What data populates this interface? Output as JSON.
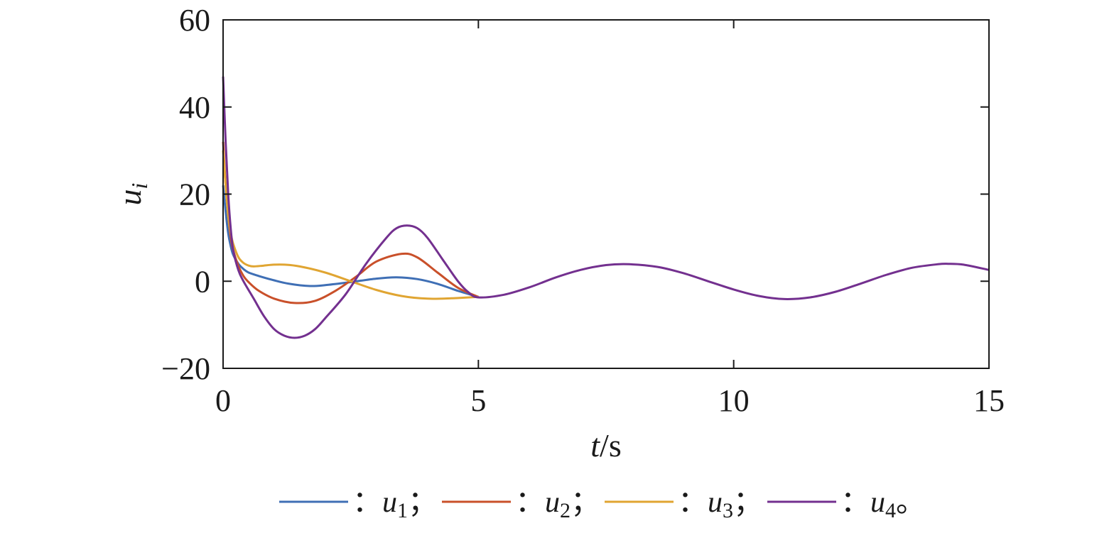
{
  "chart_data": {
    "type": "line",
    "title": "",
    "xlabel": {
      "var": "t",
      "unit": "/s"
    },
    "ylabel": {
      "var": "u",
      "sub": "i"
    },
    "xlim": [
      0,
      15
    ],
    "ylim": [
      -20,
      60
    ],
    "xticks": [
      0,
      5,
      10,
      15
    ],
    "yticks": [
      -20,
      0,
      20,
      40,
      60
    ],
    "ytick_labels": [
      "−20",
      "0",
      "20",
      "40",
      "60"
    ],
    "grid": false,
    "legend_position": "bottom",
    "series": [
      {
        "name": "u1",
        "legend_label": {
          "prefix": "：",
          "var": "u",
          "sub": "1",
          "suffix": "；"
        },
        "color": "#3f6fb5",
        "x": [
          0,
          0.05,
          0.1,
          0.15,
          0.2,
          0.3,
          0.4,
          0.5,
          0.7,
          1.0,
          1.3,
          1.7,
          2.0,
          2.5,
          3.0,
          3.4,
          3.8,
          4.2,
          4.6,
          5.0
        ],
        "y": [
          22,
          16,
          11,
          8,
          6,
          4,
          2.8,
          2,
          1.2,
          0.2,
          -0.6,
          -1.1,
          -0.9,
          -0.2,
          0.6,
          0.9,
          0.5,
          -0.6,
          -2.2,
          -3.6
        ]
      },
      {
        "name": "u2",
        "legend_label": {
          "prefix": "：",
          "var": "u",
          "sub": "2",
          "suffix": "；"
        },
        "color": "#c9502a",
        "x": [
          0,
          0.05,
          0.1,
          0.15,
          0.2,
          0.3,
          0.4,
          0.5,
          0.7,
          1.0,
          1.4,
          1.8,
          2.2,
          2.6,
          3.0,
          3.5,
          3.8,
          4.2,
          4.6,
          5.0
        ],
        "y": [
          32,
          22,
          15,
          10,
          7,
          3.5,
          1.2,
          -0.2,
          -2.2,
          -4,
          -5,
          -4.5,
          -2.2,
          1,
          4.5,
          6.3,
          5.5,
          2,
          -1.5,
          -3.6
        ]
      },
      {
        "name": "u3",
        "legend_label": {
          "prefix": "：",
          "var": "u",
          "sub": "3",
          "suffix": "；"
        },
        "color": "#e0a532",
        "x": [
          0,
          0.05,
          0.1,
          0.15,
          0.2,
          0.3,
          0.4,
          0.5,
          0.6,
          0.8,
          1.0,
          1.2,
          1.5,
          2.0,
          2.5,
          3.0,
          3.5,
          4.0,
          4.5,
          5.0
        ],
        "y": [
          30,
          22,
          15,
          11,
          8.5,
          5.5,
          4.2,
          3.6,
          3.4,
          3.6,
          3.8,
          3.8,
          3.4,
          2,
          0,
          -2,
          -3.4,
          -4,
          -3.9,
          -3.6
        ]
      },
      {
        "name": "u4",
        "legend_label": {
          "prefix": "：",
          "var": "u",
          "sub": "4",
          "suffix": "。"
        },
        "color": "#73308f",
        "x": [
          0,
          0.05,
          0.1,
          0.15,
          0.2,
          0.3,
          0.4,
          0.6,
          0.8,
          1.0,
          1.2,
          1.4,
          1.6,
          1.8,
          2.0,
          2.4,
          2.8,
          3.2,
          3.4,
          3.6,
          3.8,
          4.0,
          4.3,
          4.6,
          4.8,
          5.0,
          5.5,
          6.0,
          6.5,
          7.0,
          7.5,
          7.95,
          8.5,
          9.0,
          9.5,
          10.0,
          10.5,
          11.0,
          11.5,
          12.0,
          12.5,
          13.0,
          13.5,
          14.0,
          14.2,
          14.5,
          15.0
        ],
        "y": [
          47,
          32,
          20,
          12,
          7,
          2.5,
          0,
          -4,
          -8,
          -11,
          -12.5,
          -13,
          -12.5,
          -11,
          -8.5,
          -3,
          4,
          10,
          12.2,
          12.8,
          12.2,
          10,
          5,
          0,
          -2.5,
          -3.7,
          -3.1,
          -1.4,
          0.8,
          2.6,
          3.7,
          3.9,
          3.3,
          1.9,
          0,
          -1.9,
          -3.4,
          -4.1,
          -3.7,
          -2.4,
          -0.5,
          1.5,
          3.1,
          3.9,
          4.0,
          3.8,
          2.6
        ]
      }
    ]
  }
}
